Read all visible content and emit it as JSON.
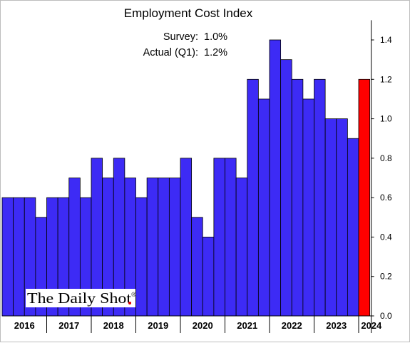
{
  "chart_data": {
    "type": "bar",
    "title": "Employment Cost Index",
    "annotations": [
      {
        "label": "Survey:",
        "value": "1.0%"
      },
      {
        "label": "Actual (Q1):",
        "value": "1.2%"
      }
    ],
    "x_labels": [
      "2016",
      "2017",
      "2018",
      "2019",
      "2020",
      "2021",
      "2022",
      "2023",
      "2024"
    ],
    "values": [
      0.6,
      0.6,
      0.6,
      0.5,
      0.6,
      0.6,
      0.7,
      0.6,
      0.8,
      0.7,
      0.8,
      0.7,
      0.6,
      0.7,
      0.7,
      0.7,
      0.8,
      0.5,
      0.4,
      0.8,
      0.8,
      0.7,
      1.2,
      1.1,
      1.4,
      1.3,
      1.2,
      1.1,
      1.2,
      1.0,
      1.0,
      0.9,
      1.2
    ],
    "highlight_last": true,
    "colors": {
      "bars": "#3d2bf5",
      "highlight": "#ff0000",
      "outline": "#000000"
    },
    "y_ticks": [
      "0.0",
      "0.2",
      "0.4",
      "0.6",
      "0.8",
      "1.0",
      "1.2",
      "1.4"
    ],
    "ylim": [
      0,
      1.5
    ],
    "y_axis_side": "right",
    "grid": false,
    "xlabel": "",
    "ylabel": ""
  },
  "logo_text": "The Daily Shot",
  "logo_mark": "®"
}
